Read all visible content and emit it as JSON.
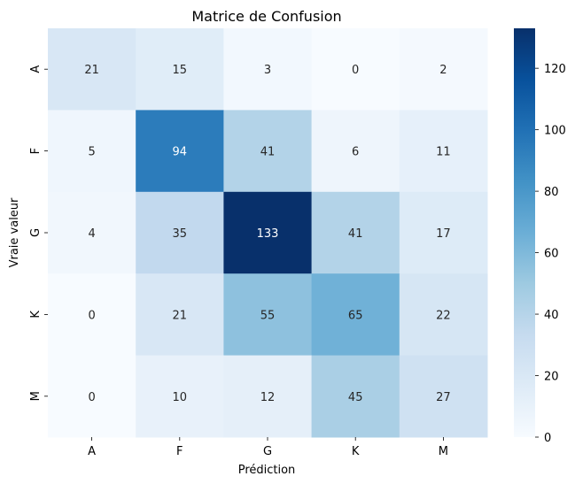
{
  "chart_data": {
    "type": "heatmap",
    "title": "Matrice de Confusion",
    "xlabel": "Prédiction",
    "ylabel": "Vraie valeur",
    "x_categories": [
      "A",
      "F",
      "G",
      "K",
      "M"
    ],
    "y_categories": [
      "A",
      "F",
      "G",
      "K",
      "M"
    ],
    "matrix": [
      [
        21,
        15,
        3,
        0,
        2
      ],
      [
        5,
        94,
        41,
        6,
        11
      ],
      [
        4,
        35,
        133,
        41,
        17
      ],
      [
        0,
        21,
        55,
        65,
        22
      ],
      [
        0,
        10,
        12,
        45,
        27
      ]
    ],
    "colormap": "Blues",
    "color_range": [
      0,
      133
    ],
    "colorbar_ticks": [
      "0",
      "20",
      "40",
      "60",
      "80",
      "100",
      "120"
    ],
    "colorbar_tick_values": [
      0,
      20,
      40,
      60,
      80,
      100,
      120
    ]
  }
}
